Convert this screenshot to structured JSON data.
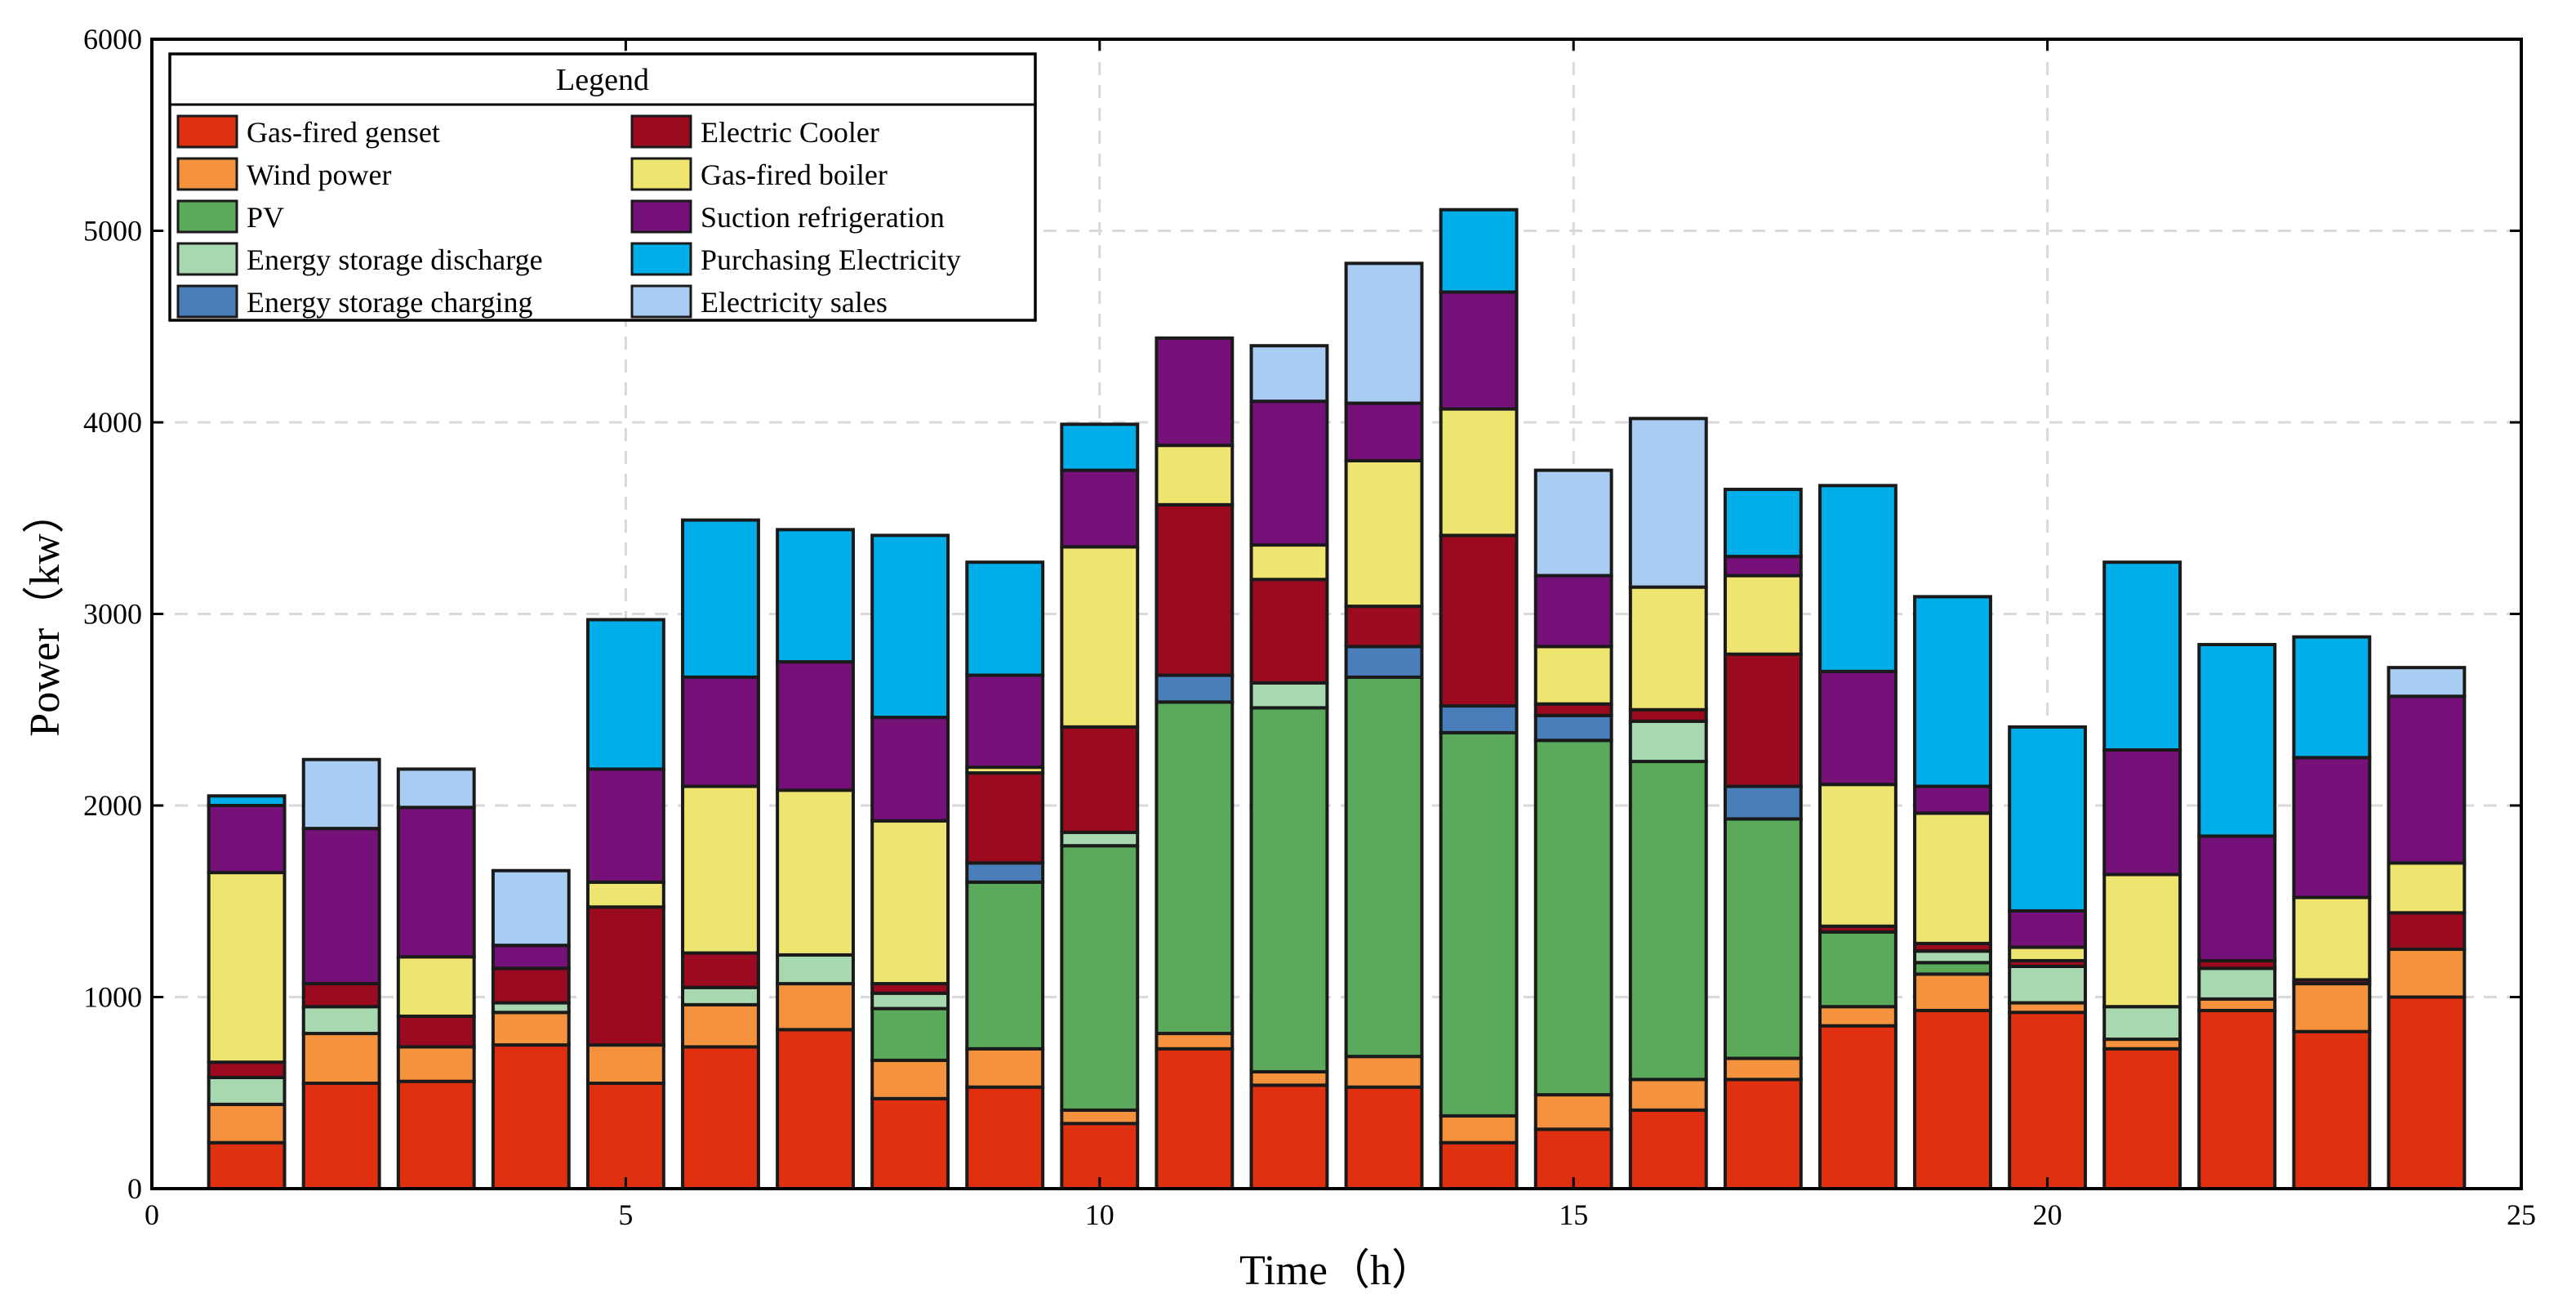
{
  "chart_data": {
    "type": "bar",
    "stacked": true,
    "title": "",
    "xlabel": "Time（h）",
    "ylabel": "Power（kw）",
    "xlim": [
      0,
      25
    ],
    "ylim": [
      0,
      6000
    ],
    "x_ticks": [
      0,
      5,
      10,
      15,
      20,
      25
    ],
    "y_ticks": [
      0,
      1000,
      2000,
      3000,
      4000,
      5000,
      6000
    ],
    "grid": true,
    "legend_title": "Legend",
    "legend_position": "top-left",
    "x": [
      1,
      2,
      3,
      4,
      5,
      6,
      7,
      8,
      9,
      10,
      11,
      12,
      13,
      14,
      15,
      16,
      17,
      18,
      19,
      20,
      21,
      22,
      23,
      24
    ],
    "series": [
      {
        "name": "Gas-fired genset",
        "color": "#E03010",
        "values": [
          240,
          550,
          560,
          750,
          550,
          740,
          830,
          470,
          530,
          340,
          730,
          540,
          530,
          240,
          310,
          410,
          570,
          850,
          930,
          920,
          730,
          930,
          820,
          1000
        ]
      },
      {
        "name": "Wind power",
        "color": "#F5923E",
        "values": [
          200,
          260,
          180,
          170,
          200,
          220,
          240,
          200,
          200,
          70,
          80,
          70,
          160,
          140,
          180,
          160,
          110,
          100,
          190,
          50,
          50,
          60,
          250,
          250
        ]
      },
      {
        "name": "PV",
        "color": "#5BAA5B",
        "values": [
          0,
          0,
          0,
          0,
          0,
          0,
          0,
          270,
          870,
          1380,
          1730,
          1900,
          1980,
          2000,
          1850,
          1660,
          1250,
          390,
          60,
          0,
          0,
          0,
          0,
          0
        ]
      },
      {
        "name": "Energy storage discharge",
        "color": "#A8D8B0",
        "values": [
          140,
          140,
          0,
          50,
          0,
          90,
          150,
          80,
          0,
          70,
          0,
          130,
          0,
          0,
          0,
          210,
          0,
          0,
          60,
          190,
          170,
          160,
          0,
          0
        ]
      },
      {
        "name": "Energy storage charging",
        "color": "#4A7EBB",
        "values": [
          0,
          0,
          0,
          0,
          0,
          0,
          0,
          0,
          100,
          0,
          140,
          0,
          160,
          140,
          130,
          0,
          170,
          0,
          0,
          0,
          0,
          0,
          0,
          0
        ]
      },
      {
        "name": "Electric Cooler",
        "color": "#9B0A1E",
        "values": [
          80,
          120,
          160,
          180,
          720,
          180,
          0,
          50,
          470,
          550,
          890,
          540,
          210,
          890,
          60,
          60,
          690,
          30,
          40,
          30,
          0,
          40,
          20,
          190
        ]
      },
      {
        "name": "Gas-fired boiler",
        "color": "#EEE470",
        "values": [
          990,
          0,
          310,
          0,
          130,
          870,
          860,
          850,
          30,
          940,
          310,
          180,
          760,
          660,
          300,
          640,
          410,
          740,
          680,
          70,
          690,
          0,
          430,
          260
        ]
      },
      {
        "name": "Suction refrigeration",
        "color": "#77117A",
        "values": [
          350,
          810,
          780,
          120,
          590,
          570,
          670,
          540,
          480,
          400,
          560,
          750,
          300,
          610,
          370,
          0,
          100,
          590,
          140,
          190,
          650,
          650,
          730,
          870
        ]
      },
      {
        "name": "Purchasing Electricity",
        "color": "#00AEEA",
        "values": [
          50,
          0,
          0,
          0,
          780,
          820,
          690,
          950,
          590,
          240,
          0,
          0,
          0,
          430,
          0,
          0,
          350,
          970,
          990,
          960,
          980,
          1000,
          630,
          0
        ]
      },
      {
        "name": "Electricity sales",
        "color": "#A9CDF2",
        "values": [
          0,
          360,
          200,
          390,
          0,
          0,
          0,
          0,
          0,
          0,
          0,
          290,
          730,
          0,
          550,
          880,
          0,
          0,
          0,
          0,
          0,
          0,
          0,
          150
        ]
      }
    ]
  }
}
